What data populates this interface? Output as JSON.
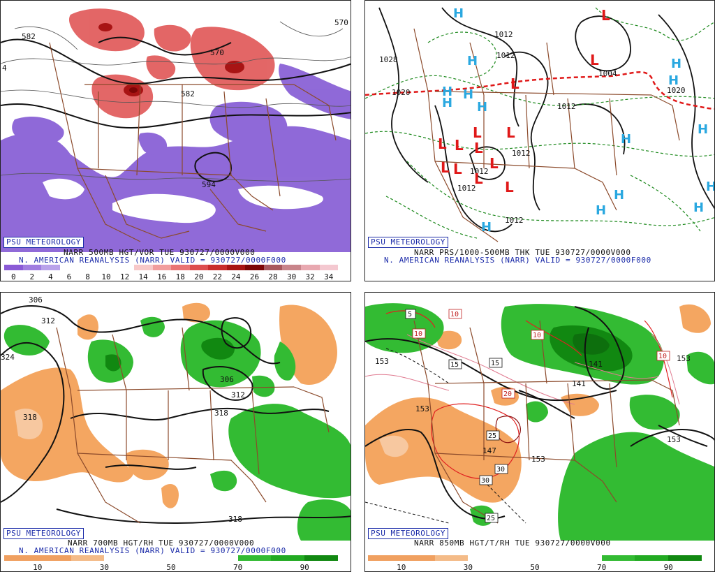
{
  "panels": {
    "top_left": {
      "badge": "PSU METEOROLOGY",
      "caption_line1": "NARR 500MB HGT/VOR TUE 930727/0000V000",
      "caption_line2": "N. AMERICAN REANALYSIS (NARR) VALID = 930727/0000F000",
      "scale_ticks": [
        "0",
        "2",
        "4",
        "6",
        "8",
        "10",
        "12",
        "14",
        "16",
        "18",
        "20",
        "22",
        "24",
        "26",
        "28",
        "30",
        "32",
        "34"
      ],
      "contour_labels": [
        "582",
        "570",
        "582",
        "594",
        "570",
        "4"
      ]
    },
    "top_right": {
      "badge": "PSU METEOROLOGY",
      "caption_line1": "NARR PRS/1000-500MB THK TUE 930727/0000V000",
      "caption_line2": "N. AMERICAN REANALYSIS (NARR) VALID = 930727/0000F000",
      "contour_labels": [
        "1012",
        "1012",
        "1028",
        "1020",
        "1004",
        "1020",
        "1012",
        "1012",
        "1012",
        "1012",
        "1012"
      ],
      "high_symbol": "H",
      "low_symbol": "L"
    },
    "bottom_left": {
      "badge": "PSU METEOROLOGY",
      "caption_line1": "NARR 700MB HGT/RH TUE 930727/0000V000",
      "caption_line2": "N. AMERICAN REANALYSIS (NARR) VALID = 930727/0000F000",
      "scale_ticks": [
        "10",
        "30",
        "50",
        "70",
        "90"
      ],
      "contour_labels": [
        "306",
        "312",
        "324",
        "318",
        "306",
        "312",
        "318",
        "318"
      ]
    },
    "bottom_right": {
      "badge": "PSU METEOROLOGY",
      "caption_line1": "NARR 850MB HGT/T/RH TUE 930727/0000V000",
      "scale_ticks": [
        "10",
        "30",
        "50",
        "70",
        "90"
      ],
      "contour_labels": [
        "153",
        "153",
        "141",
        "141",
        "153",
        "153",
        "153",
        "147"
      ],
      "temp_labels": [
        "5",
        "10",
        "10",
        "10",
        "15",
        "15",
        "20",
        "25",
        "30",
        "30",
        "25",
        "10"
      ]
    }
  },
  "colors": {
    "vorticity_scale": [
      "#8a5ad6",
      "#a07de0",
      "#b9a2ea",
      "#ffffff",
      "#ffffff",
      "#ffffff",
      "#ffffff",
      "#f7c8c8",
      "#f19d9d",
      "#e97474",
      "#dd4d4d",
      "#c92c2c",
      "#a81414",
      "#7c0606",
      "#a8585e",
      "#c8848a",
      "#e8a8b0",
      "#f4c8d0"
    ],
    "rh_scale": [
      "#f0a060",
      "#f0a060",
      "#f4bb88",
      "#ffffff",
      "#ffffff",
      "#ffffff",
      "#ffffff",
      "#33bb33",
      "#22aa22",
      "#118811"
    ],
    "borders": "#8b4a2b",
    "purple": "#8a62d6",
    "orange": "#f4a661",
    "green": "#33bb33",
    "red_shade": "#e05656",
    "high_blue": "#2aa8e0",
    "low_red": "#e01818"
  }
}
